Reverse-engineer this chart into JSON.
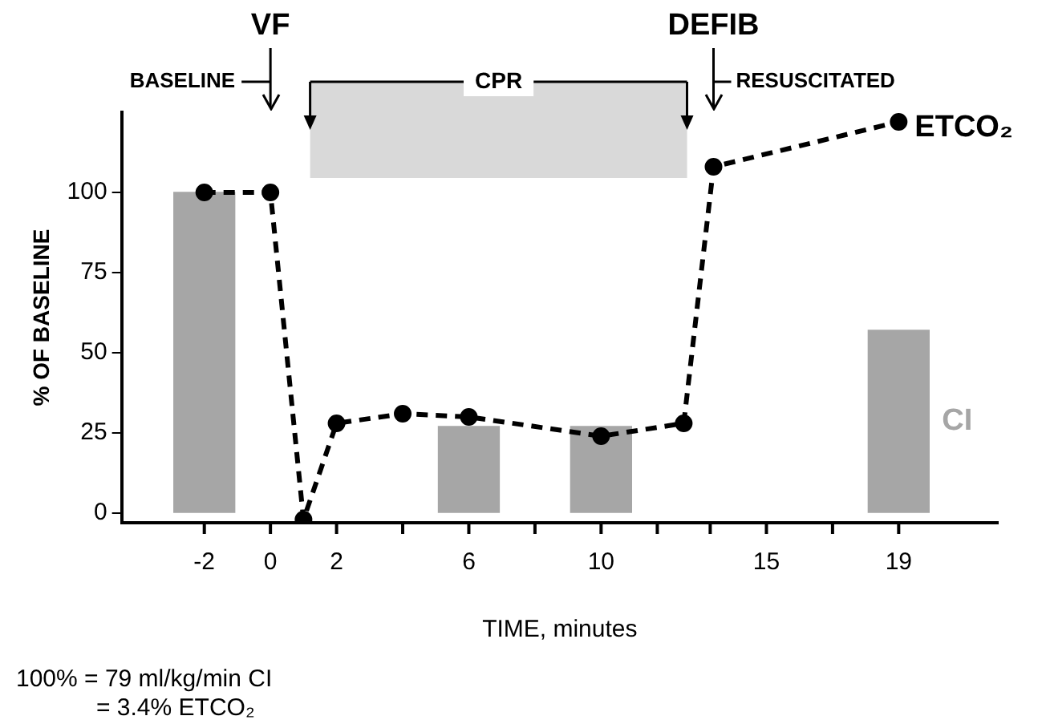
{
  "chart_data": {
    "type": "bar",
    "xlabel": "TIME, minutes",
    "ylabel": "% OF BASELINE",
    "xlim": [
      -4.5,
      22
    ],
    "xticks": [
      -2,
      0,
      2,
      {
        "value": 4,
        "label": null
      },
      6,
      {
        "value": 8,
        "label": null
      },
      10,
      {
        "value": 11.7,
        "label": null
      },
      {
        "value": 13.3,
        "label": null
      },
      15,
      {
        "value": 17,
        "label": null
      },
      19
    ],
    "ylim": [
      -3,
      125
    ],
    "yticks": [
      0,
      25,
      50,
      75,
      100
    ],
    "series": [
      {
        "name": "CI",
        "x": [
          -2,
          6,
          10,
          19
        ],
        "values": [
          100,
          27,
          27,
          57
        ],
        "color": "#a6a6a6"
      },
      {
        "name": "ETCO₂",
        "type": "line",
        "x": [
          -2,
          0,
          1,
          2,
          4,
          6,
          10,
          12.5,
          13.4,
          19
        ],
        "values": [
          100,
          100,
          -2,
          28,
          31,
          30,
          24,
          28,
          108,
          122
        ],
        "color": "#000000"
      }
    ],
    "marker": "circle",
    "line_style": "dashed",
    "grid": false,
    "legend": false,
    "bands": [
      {
        "axis": "x",
        "from": 1.2,
        "to": 12.6,
        "label": "CPR",
        "color": "#d9d9d9"
      }
    ],
    "ref_lines": [
      {
        "axis": "x",
        "value": 0,
        "label": "VF"
      },
      {
        "axis": "x",
        "value": 13.4,
        "label": "DEFIB"
      }
    ],
    "annotations": [
      "BASELINE",
      "RESUSCITATED",
      "100% = 79 ml/kg/min CI",
      "= 3.4% ETCO₂"
    ]
  }
}
